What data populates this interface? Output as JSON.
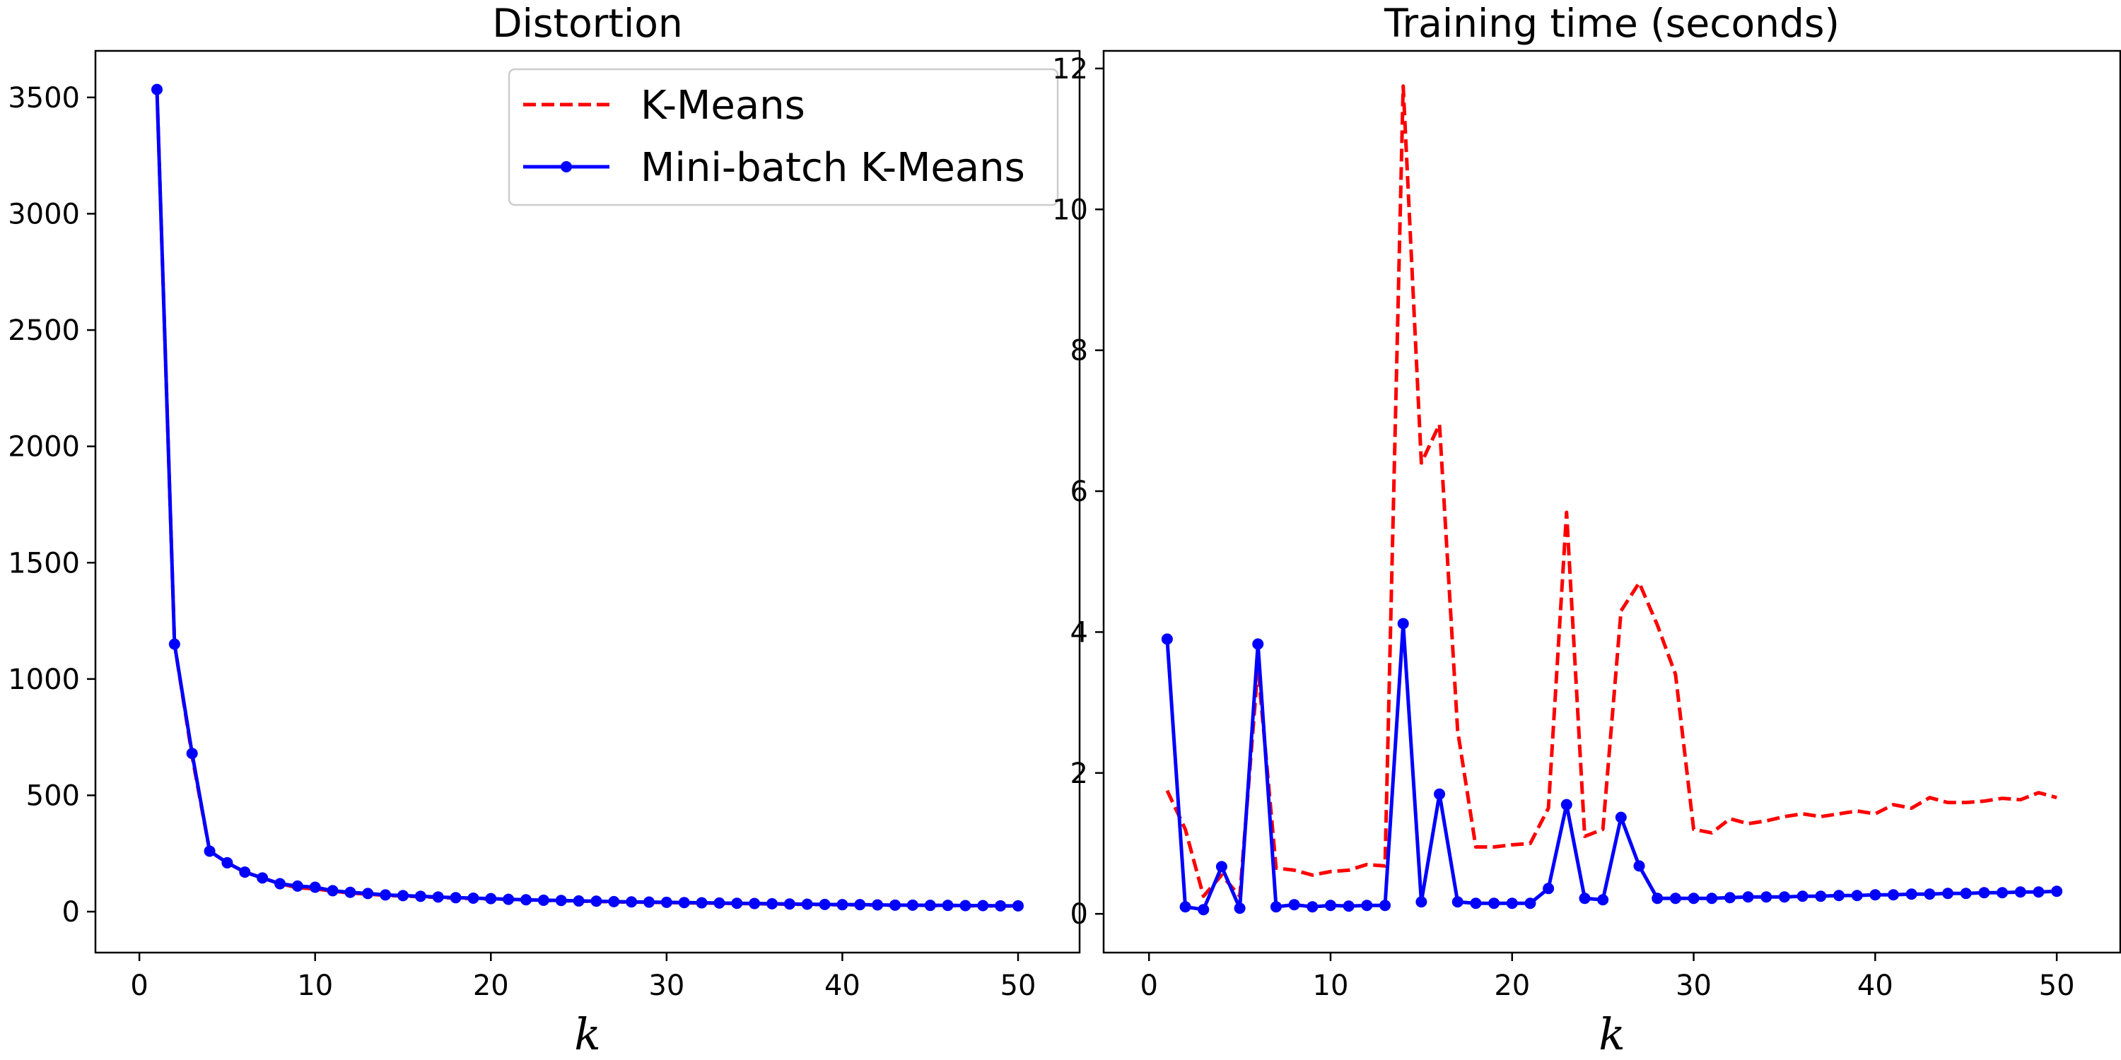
{
  "chart_data": [
    {
      "type": "line",
      "title": "Distortion",
      "xlabel": "k",
      "ylabel": "",
      "xlim": [
        -2.5,
        53.5
      ],
      "ylim": [
        -176,
        3700
      ],
      "xticks": [
        0,
        10,
        20,
        30,
        40,
        50
      ],
      "yticks": [
        0,
        500,
        1000,
        1500,
        2000,
        2500,
        3000,
        3500
      ],
      "legend": "top-right",
      "series": [
        {
          "name": "K-Means",
          "style": "dashed",
          "color": "#ff0000",
          "x": [
            1,
            2,
            3,
            4,
            5,
            6,
            7,
            8,
            9,
            10,
            11,
            12,
            13,
            14,
            15,
            16,
            17,
            18,
            19,
            20,
            21,
            22,
            23,
            24,
            25,
            26,
            27,
            28,
            29,
            30,
            31,
            32,
            33,
            34,
            35,
            36,
            37,
            38,
            39,
            40,
            41,
            42,
            43,
            44,
            45,
            46,
            47,
            48,
            49,
            50
          ],
          "values": [
            3534,
            1150,
            668,
            260,
            210,
            170,
            145,
            120,
            103,
            98,
            88,
            80,
            75,
            70,
            67,
            64,
            61,
            58,
            56,
            54,
            52,
            50,
            48,
            47,
            45,
            44,
            42,
            41,
            40,
            39,
            38,
            37,
            36,
            35,
            34,
            33,
            32,
            31,
            30,
            29,
            29,
            28,
            27,
            27,
            26,
            26,
            25,
            25,
            24,
            24
          ]
        },
        {
          "name": "Mini-batch K-Means",
          "style": "solid-marker",
          "color": "#0000ff",
          "x": [
            1,
            2,
            3,
            4,
            5,
            6,
            7,
            8,
            9,
            10,
            11,
            12,
            13,
            14,
            15,
            16,
            17,
            18,
            19,
            20,
            21,
            22,
            23,
            24,
            25,
            26,
            27,
            28,
            29,
            30,
            31,
            32,
            33,
            34,
            35,
            36,
            37,
            38,
            39,
            40,
            41,
            42,
            43,
            44,
            45,
            46,
            47,
            48,
            49,
            50
          ],
          "values": [
            3534,
            1150,
            680,
            260,
            210,
            170,
            145,
            120,
            110,
            105,
            90,
            83,
            78,
            72,
            69,
            66,
            63,
            60,
            58,
            56,
            53,
            51,
            49,
            48,
            46,
            45,
            43,
            42,
            41,
            40,
            39,
            38,
            37,
            36,
            35,
            34,
            33,
            32,
            31,
            30,
            30,
            29,
            28,
            28,
            27,
            27,
            26,
            26,
            25,
            25
          ]
        }
      ]
    },
    {
      "type": "line",
      "title": "Training time (seconds)",
      "xlabel": "k",
      "ylabel": "",
      "xlim": [
        -2.5,
        53.5
      ],
      "ylim": [
        -0.55,
        12.25
      ],
      "xticks": [
        0,
        10,
        20,
        30,
        40,
        50
      ],
      "yticks": [
        0,
        2,
        4,
        6,
        8,
        10,
        12
      ],
      "series": [
        {
          "name": "K-Means",
          "style": "dashed",
          "color": "#ff0000",
          "x": [
            1,
            2,
            3,
            4,
            5,
            6,
            7,
            8,
            9,
            10,
            11,
            12,
            13,
            14,
            15,
            16,
            17,
            18,
            19,
            20,
            21,
            22,
            23,
            24,
            25,
            26,
            27,
            28,
            29,
            30,
            31,
            32,
            33,
            34,
            35,
            36,
            37,
            38,
            39,
            40,
            41,
            42,
            43,
            44,
            45,
            46,
            47,
            48,
            49,
            50
          ],
          "values": [
            1.75,
            1.2,
            0.25,
            0.55,
            0.25,
            3.5,
            0.65,
            0.62,
            0.55,
            0.6,
            0.62,
            0.7,
            0.68,
            11.75,
            6.4,
            6.95,
            2.6,
            0.95,
            0.95,
            0.98,
            1.0,
            1.5,
            5.7,
            1.1,
            1.2,
            4.3,
            4.7,
            4.1,
            3.4,
            1.2,
            1.15,
            1.35,
            1.28,
            1.32,
            1.38,
            1.42,
            1.38,
            1.42,
            1.46,
            1.42,
            1.55,
            1.5,
            1.65,
            1.58,
            1.58,
            1.6,
            1.64,
            1.62,
            1.72,
            1.65
          ]
        },
        {
          "name": "Mini-batch K-Means",
          "style": "solid-marker",
          "color": "#0000ff",
          "x": [
            1,
            2,
            3,
            4,
            5,
            6,
            7,
            8,
            9,
            10,
            11,
            12,
            13,
            14,
            15,
            16,
            17,
            18,
            19,
            20,
            21,
            22,
            23,
            24,
            25,
            26,
            27,
            28,
            29,
            30,
            31,
            32,
            33,
            34,
            35,
            36,
            37,
            38,
            39,
            40,
            41,
            42,
            43,
            44,
            45,
            46,
            47,
            48,
            49,
            50
          ],
          "values": [
            3.9,
            0.1,
            0.06,
            0.67,
            0.08,
            3.83,
            0.1,
            0.13,
            0.1,
            0.12,
            0.11,
            0.12,
            0.12,
            4.12,
            0.17,
            1.7,
            0.17,
            0.15,
            0.15,
            0.15,
            0.15,
            0.36,
            1.55,
            0.22,
            0.2,
            1.37,
            0.68,
            0.22,
            0.22,
            0.22,
            0.22,
            0.23,
            0.24,
            0.24,
            0.24,
            0.25,
            0.25,
            0.26,
            0.26,
            0.27,
            0.27,
            0.28,
            0.28,
            0.29,
            0.29,
            0.3,
            0.3,
            0.31,
            0.31,
            0.32
          ]
        }
      ]
    }
  ]
}
